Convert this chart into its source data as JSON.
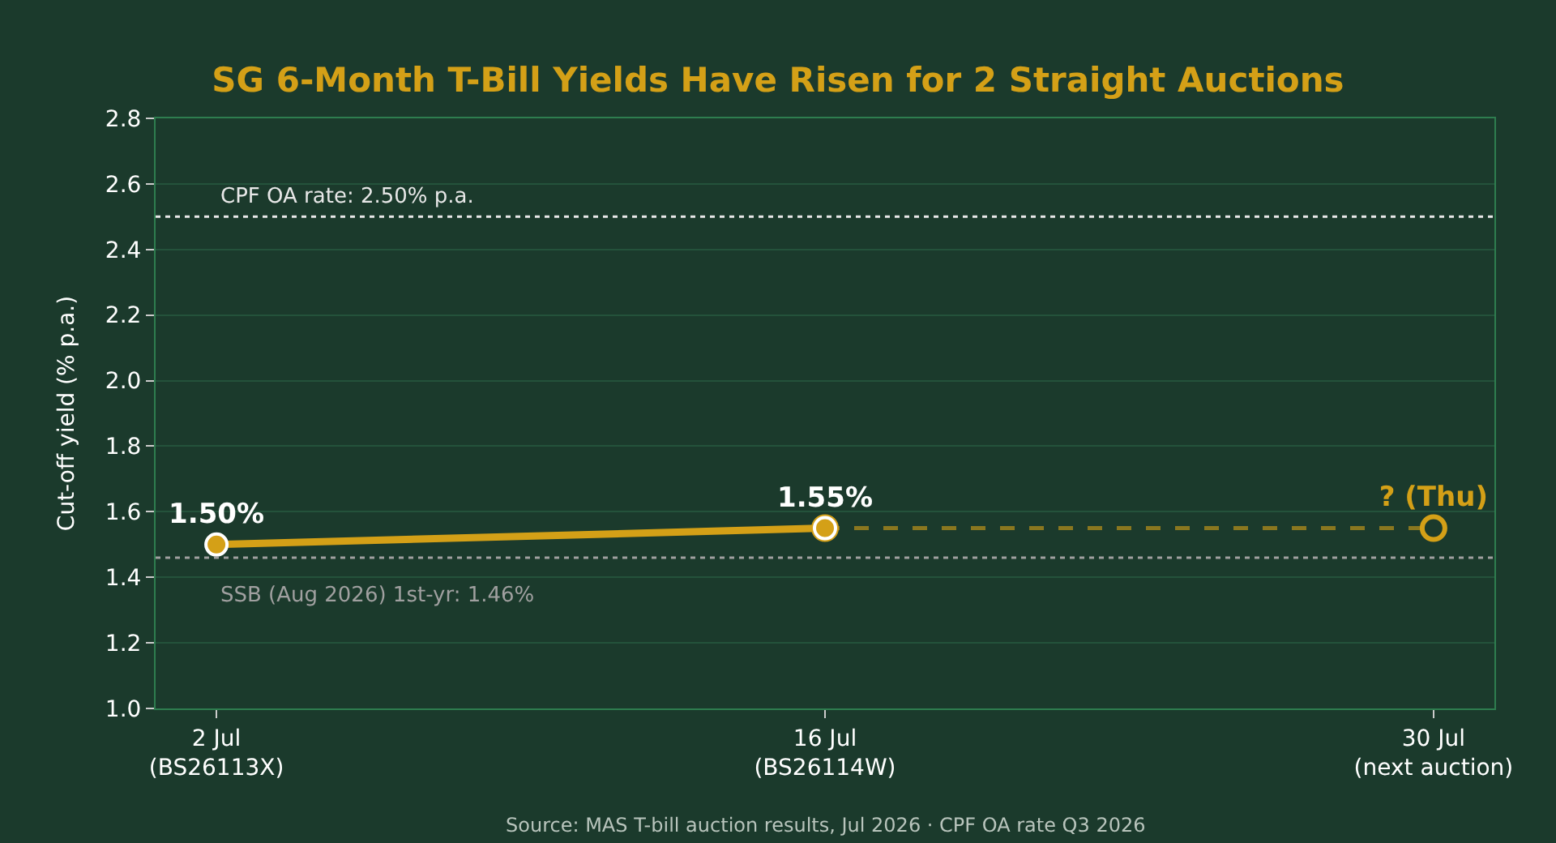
{
  "chart_data": {
    "type": "line",
    "title": "SG 6-Month T-Bill Yields Have Risen for 2 Straight Auctions",
    "ylabel": "Cut-off yield (% p.a.)",
    "categories": [
      "2 Jul\n(BS26113X)",
      "16 Jul\n(BS26114W)",
      "30 Jul\n(next auction)"
    ],
    "series": [
      {
        "color": "#d4a017",
        "values": [
          null,
          1.55,
          1.55
        ],
        "line_style": "dashed",
        "marker": "circle-open",
        "value_labels": [
          null,
          null,
          "? (Thu)"
        ]
      },
      {
        "color": "#d4a017",
        "values": [
          1.5,
          1.55,
          null
        ],
        "line_style": "solid",
        "marker": "circle",
        "value_labels": [
          "1.50%",
          "1.55%",
          null
        ]
      }
    ],
    "ylim": [
      1.0,
      2.8
    ],
    "yticks": [
      {
        "value": 1.0,
        "label": "1.0"
      },
      {
        "value": 1.2,
        "label": "1.2"
      },
      {
        "value": 1.4,
        "label": "1.4"
      },
      {
        "value": 1.6,
        "label": "1.6"
      },
      {
        "value": 1.8,
        "label": "1.8"
      },
      {
        "value": 2.0,
        "label": "2.0"
      },
      {
        "value": 2.2,
        "label": "2.2"
      },
      {
        "value": 2.4,
        "label": "2.4"
      },
      {
        "value": 2.6,
        "label": "2.6"
      },
      {
        "value": 2.8,
        "label": "2.8"
      }
    ],
    "grid": "y",
    "legend": false,
    "ref_lines": [
      {
        "axis": "y",
        "value": 2.5,
        "label": "CPF OA rate: 2.50% p.a.",
        "color": "#e8e8e8",
        "line_style": "dotted"
      },
      {
        "axis": "y",
        "value": 1.46,
        "label": "SSB (Aug 2026) 1st-yr: 1.46%",
        "color": "#a0a0a0",
        "line_style": "dotted"
      }
    ],
    "annotations": [
      "Source: MAS T-bill auction results, Jul 2026 · CPF OA rate Q3 2026"
    ]
  }
}
